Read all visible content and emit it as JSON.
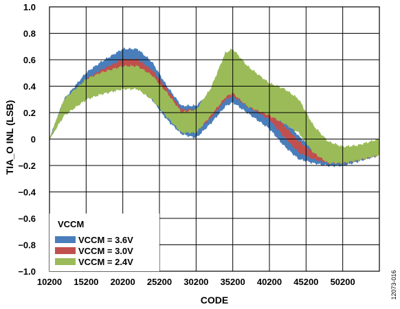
{
  "chart_data": {
    "type": "area",
    "title": "",
    "xlabel": "CODE",
    "ylabel": "TIA_O INL (LSB)",
    "xlim": [
      10200,
      55200
    ],
    "ylim": [
      -1.0,
      1.0
    ],
    "x_ticks": [
      10200,
      15200,
      20200,
      25200,
      30200,
      35200,
      40200,
      45200,
      50200
    ],
    "x_tick_labels": [
      "10200",
      "15200",
      "20200",
      "25200",
      "30200",
      "35200",
      "40200",
      "45200",
      "50200"
    ],
    "y_ticks": [
      1.0,
      0.8,
      0.6,
      0.4,
      0.2,
      0,
      -0.2,
      -0.4,
      -0.6,
      -0.8,
      -1.0
    ],
    "y_tick_labels": [
      "1.0",
      "0.8",
      "0.6",
      "0.4",
      "0.2",
      "0",
      "−0.2",
      "−0.4",
      "−0.6",
      "−0.8",
      "−1.0"
    ],
    "grid": true,
    "legend": {
      "title": "VCCM",
      "placement": "bottom-left",
      "entries": [
        "VCCM = 3.6V",
        "VCCM = 3.0V",
        "VCCM = 2.4V"
      ]
    },
    "series": [
      {
        "name": "VCCM = 3.6V",
        "color": "#4a7ebb",
        "x": [
          10200,
          12200,
          15200,
          17200,
          20200,
          22200,
          24200,
          26200,
          28200,
          30200,
          32200,
          34200,
          35200,
          37200,
          40200,
          42200,
          44200,
          46200,
          48200,
          50200,
          52200,
          55200
        ],
        "upper": [
          0.0,
          0.3,
          0.5,
          0.58,
          0.68,
          0.68,
          0.58,
          0.4,
          0.25,
          0.25,
          0.35,
          0.42,
          0.42,
          0.36,
          0.28,
          0.15,
          0.02,
          -0.08,
          -0.1,
          -0.1,
          -0.08,
          -0.05
        ],
        "lower": [
          0.0,
          0.2,
          0.32,
          0.38,
          0.42,
          0.4,
          0.3,
          0.15,
          0.04,
          0.01,
          0.12,
          0.25,
          0.28,
          0.2,
          0.08,
          -0.05,
          -0.15,
          -0.18,
          -0.2,
          -0.2,
          -0.17,
          -0.12
        ]
      },
      {
        "name": "VCCM = 3.0V",
        "color": "#c0504d",
        "x": [
          10200,
          12200,
          15200,
          17200,
          20200,
          22200,
          24200,
          26200,
          28200,
          30200,
          32200,
          34200,
          35200,
          37200,
          40200,
          42200,
          44200,
          46200,
          48200,
          50200,
          52200,
          55200
        ],
        "upper": [
          0.0,
          0.28,
          0.45,
          0.52,
          0.6,
          0.6,
          0.52,
          0.38,
          0.22,
          0.22,
          0.32,
          0.45,
          0.45,
          0.35,
          0.22,
          0.1,
          -0.02,
          -0.1,
          -0.1,
          -0.1,
          -0.08,
          -0.06
        ],
        "lower": [
          0.0,
          0.22,
          0.36,
          0.42,
          0.48,
          0.48,
          0.4,
          0.25,
          0.1,
          0.06,
          0.16,
          0.3,
          0.33,
          0.25,
          0.15,
          0.02,
          -0.1,
          -0.15,
          -0.18,
          -0.18,
          -0.16,
          -0.12
        ]
      },
      {
        "name": "VCCM = 2.4V",
        "color": "#9bbb59",
        "x": [
          10200,
          12200,
          15200,
          17200,
          20200,
          22200,
          24200,
          26200,
          28200,
          30200,
          32200,
          34200,
          35200,
          37200,
          40200,
          42200,
          44200,
          46200,
          48200,
          50200,
          52200,
          55200
        ],
        "upper": [
          0.0,
          0.3,
          0.45,
          0.5,
          0.55,
          0.55,
          0.48,
          0.35,
          0.2,
          0.22,
          0.38,
          0.65,
          0.68,
          0.55,
          0.42,
          0.38,
          0.3,
          0.1,
          -0.02,
          -0.06,
          -0.05,
          0.0
        ],
        "lower": [
          0.0,
          0.18,
          0.3,
          0.34,
          0.38,
          0.38,
          0.3,
          0.17,
          0.05,
          0.05,
          0.18,
          0.32,
          0.35,
          0.25,
          0.18,
          0.12,
          0.05,
          -0.1,
          -0.18,
          -0.18,
          -0.16,
          -0.12
        ]
      }
    ]
  },
  "figure_id": "12073-016"
}
